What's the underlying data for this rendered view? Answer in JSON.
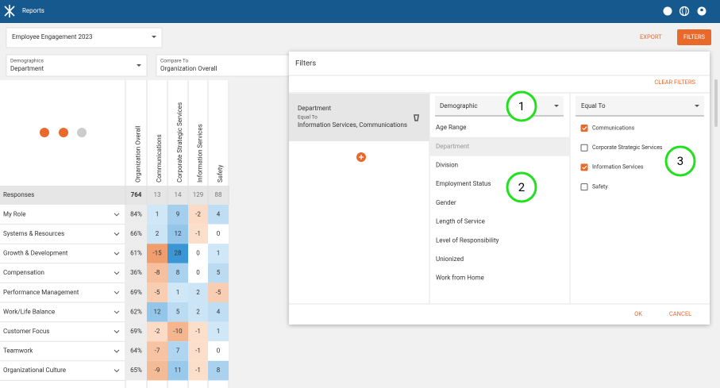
{
  "header": {
    "title": "Reports"
  },
  "survey_select": "Employee Engagement 2023",
  "actions": {
    "export": "EXPORT",
    "filters": "FILTERS"
  },
  "demographics": {
    "label": "Demographics",
    "value": "Department"
  },
  "compare_to": {
    "label": "Compare To",
    "value": "Organization Overall"
  },
  "table": {
    "columns": [
      "Organization Overall",
      "Communications",
      "Corporate Strategic Services",
      "Information Services",
      "Safety"
    ],
    "responses": {
      "label": "Responses",
      "values": [
        764,
        13,
        14,
        129,
        88
      ]
    },
    "rows": [
      {
        "label": "My Role",
        "overall": "84%",
        "values": [
          1,
          9,
          -2,
          4
        ]
      },
      {
        "label": "Systems & Resources",
        "overall": "66%",
        "values": [
          2,
          12,
          -1,
          0
        ]
      },
      {
        "label": "Growth & Development",
        "overall": "61%",
        "values": [
          -15,
          28,
          0,
          1
        ]
      },
      {
        "label": "Compensation",
        "overall": "36%",
        "values": [
          -8,
          8,
          0,
          5
        ]
      },
      {
        "label": "Performance Management",
        "overall": "69%",
        "values": [
          -5,
          1,
          2,
          -5
        ]
      },
      {
        "label": "Work/Life Balance",
        "overall": "62%",
        "values": [
          12,
          5,
          2,
          4
        ]
      },
      {
        "label": "Customer Focus",
        "overall": "69%",
        "values": [
          -2,
          -10,
          -1,
          1
        ]
      },
      {
        "label": "Teamwork",
        "overall": "64%",
        "values": [
          -7,
          7,
          -1,
          0
        ]
      },
      {
        "label": "Organizational Culture",
        "overall": "65%",
        "values": [
          -9,
          11,
          -1,
          8
        ]
      }
    ]
  },
  "filters_dialog": {
    "title": "Filters",
    "clear": "CLEAR FILTERS",
    "applied": {
      "name": "Department",
      "operator": "Equal To",
      "values": "Information Services, Communications"
    },
    "field_select": "Demographic",
    "fields": [
      "Age Range",
      "Department",
      "Division",
      "Employment Status",
      "Gender",
      "Length of Service",
      "Level of Responsibility",
      "Unionized",
      "Work from Home"
    ],
    "selected_field": 1,
    "operator_select": "Equal To",
    "options": [
      {
        "label": "Communications",
        "checked": true
      },
      {
        "label": "Corporate Strategic Services",
        "checked": false
      },
      {
        "label": "Information Services",
        "checked": true
      },
      {
        "label": "Safety",
        "checked": false
      }
    ],
    "ok": "OK",
    "cancel": "CANCEL"
  },
  "annotations": [
    "1",
    "2",
    "3"
  ]
}
